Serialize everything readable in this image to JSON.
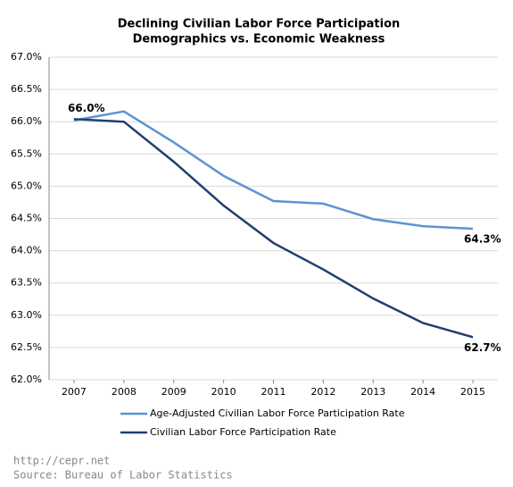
{
  "chart_data": {
    "type": "line",
    "title": "Declining Civilian Labor Force Participation",
    "subtitle": "Demographics vs. Economic Weakness",
    "x": [
      2007,
      2008,
      2009,
      2010,
      2011,
      2012,
      2013,
      2014,
      2015
    ],
    "xlim": [
      2006.5,
      2015.5
    ],
    "xticks": [
      2007,
      2008,
      2009,
      2010,
      2011,
      2012,
      2013,
      2014,
      2015
    ],
    "ylim": [
      62,
      67
    ],
    "yticks": [
      {
        "value": 62,
        "label": "62.0%"
      },
      {
        "value": 62.5,
        "label": "62.5%"
      },
      {
        "value": 63,
        "label": "63.0%"
      },
      {
        "value": 63.5,
        "label": "63.5%"
      },
      {
        "value": 64,
        "label": "64.0%"
      },
      {
        "value": 64.5,
        "label": "64.5%"
      },
      {
        "value": 65,
        "label": "65.0%"
      },
      {
        "value": 65.5,
        "label": "65.5%"
      },
      {
        "value": 66,
        "label": "66.0%"
      },
      {
        "value": 66.5,
        "label": "66.5%"
      },
      {
        "value": 67,
        "label": "67.0%"
      }
    ],
    "grid": true,
    "series": [
      {
        "name": "Age-Adjusted Civilian Labor Force Participation Rate",
        "color": "#5b93d3",
        "values": [
          66.02,
          66.16,
          65.68,
          65.16,
          64.77,
          64.73,
          64.49,
          64.38,
          64.34
        ],
        "value_labels": [
          null,
          null,
          null,
          null,
          null,
          null,
          null,
          null,
          "64.3%"
        ]
      },
      {
        "name": "Civilian Labor Force Participation Rate",
        "color": "#203f6e",
        "values": [
          66.04,
          66.0,
          65.38,
          64.7,
          64.12,
          63.71,
          63.26,
          62.88,
          62.66
        ],
        "value_labels": [
          "66.0%",
          null,
          null,
          null,
          null,
          null,
          null,
          null,
          "62.7%"
        ]
      }
    ],
    "annotations": [
      "http://cepr.net",
      "Source: Bureau of Labor Statistics"
    ]
  }
}
